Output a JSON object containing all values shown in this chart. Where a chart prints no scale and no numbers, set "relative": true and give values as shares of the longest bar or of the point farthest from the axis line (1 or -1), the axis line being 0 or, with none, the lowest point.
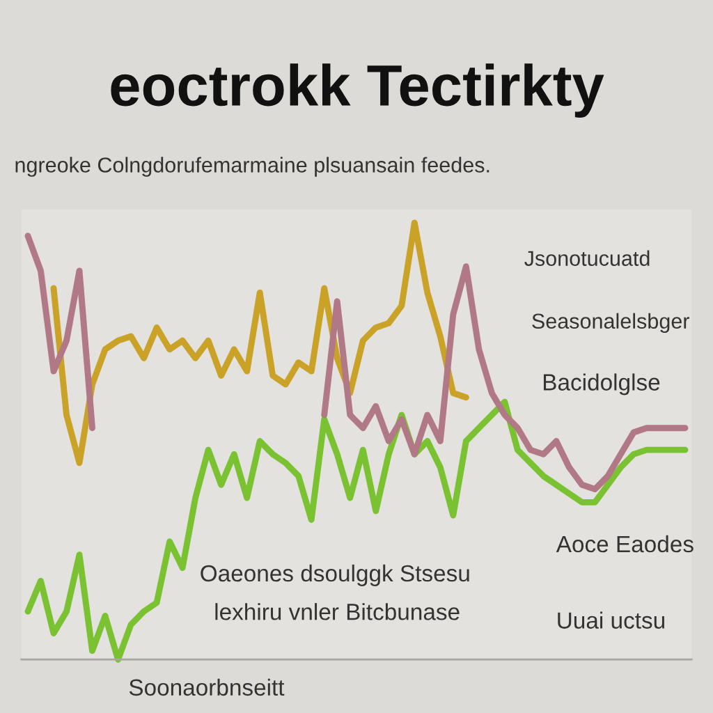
{
  "chart_data": {
    "type": "line",
    "title": "eoctrokk Tectirkty",
    "subtitle": "ngreoke Colngdorufemarmaine plsuansain feedes.",
    "annotations": [
      "Jsonotucuatd",
      "Seasonalelsbger",
      "Bacidolglse",
      "Oaeones dsoulggk Stsesu",
      "lexhiru vnler Bitcbunase",
      "Aoce Eaodes",
      "Uuai uctsu",
      "Soonaorbnseitt"
    ],
    "relative": true,
    "line_style": "solid",
    "categories": [
      null,
      null,
      null,
      null,
      null,
      null,
      null,
      null,
      null,
      null,
      null,
      null,
      null,
      null,
      null,
      null,
      null,
      null,
      null,
      null,
      null,
      null,
      null,
      null,
      null,
      null,
      null,
      null,
      null,
      null,
      null,
      null,
      null,
      null,
      null,
      null,
      null,
      null,
      null,
      null,
      null,
      null,
      null,
      null,
      null,
      null,
      null,
      null,
      null,
      null,
      null,
      null
    ],
    "series": [
      {
        "color": "#c9a227",
        "values": [
          null,
          null,
          0.85,
          0.56,
          0.45,
          0.63,
          0.71,
          0.73,
          0.74,
          0.69,
          0.76,
          0.71,
          0.73,
          0.69,
          0.73,
          0.65,
          0.71,
          0.66,
          0.84,
          0.65,
          0.63,
          0.68,
          0.66,
          0.85,
          0.69,
          0.61,
          0.73,
          0.76,
          0.77,
          0.81,
          1.0,
          0.84,
          0.74,
          0.61,
          0.6,
          null,
          null,
          null,
          null,
          null,
          null,
          null,
          null,
          null,
          null,
          null,
          null,
          null,
          null,
          null,
          null,
          null
        ]
      },
      {
        "color": "#7ac231",
        "values": [
          0.11,
          0.18,
          0.06,
          0.11,
          0.24,
          0.02,
          0.1,
          0.0,
          0.08,
          0.11,
          0.13,
          0.27,
          0.21,
          0.37,
          0.48,
          0.4,
          0.47,
          0.37,
          0.5,
          0.47,
          0.45,
          0.42,
          0.32,
          0.55,
          0.47,
          0.37,
          0.48,
          0.34,
          0.47,
          0.56,
          0.47,
          0.5,
          0.44,
          0.33,
          0.5,
          0.53,
          0.56,
          0.59,
          0.48,
          0.45,
          0.42,
          0.4,
          0.38,
          0.36,
          0.36,
          0.4,
          0.44,
          0.47,
          0.48,
          0.48,
          0.48,
          0.48
        ]
      },
      {
        "color": "#b07985",
        "values": [
          0.97,
          0.89,
          0.66,
          0.73,
          0.89,
          0.53,
          null,
          null,
          null,
          null,
          null,
          null,
          null,
          null,
          null,
          null,
          null,
          null,
          null,
          null,
          null,
          null,
          null,
          0.56,
          0.82,
          0.56,
          0.53,
          0.58,
          0.5,
          0.55,
          0.47,
          0.56,
          0.5,
          0.79,
          0.9,
          0.71,
          0.61,
          0.56,
          0.53,
          0.48,
          0.47,
          0.5,
          0.44,
          0.4,
          0.39,
          0.42,
          0.47,
          0.52,
          0.53,
          0.53,
          0.53,
          0.53
        ]
      }
    ]
  }
}
